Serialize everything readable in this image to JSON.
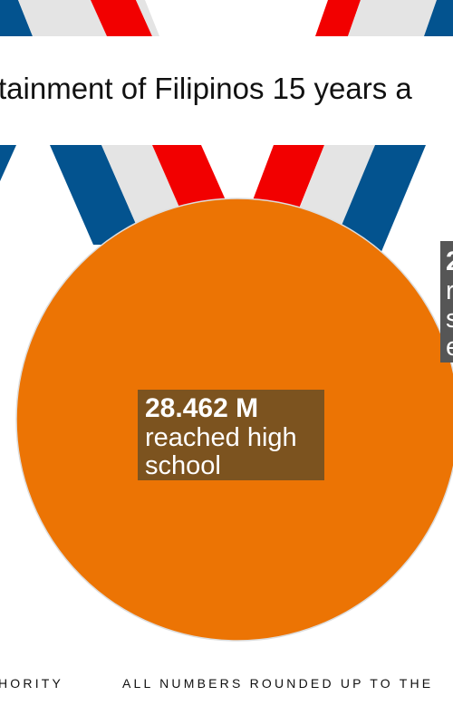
{
  "header": {
    "title": "tainment of Filipinos 15 years a"
  },
  "medal": {
    "value": "28.462 M",
    "label_lines": [
      "reached high",
      "school"
    ]
  },
  "side_box": {
    "value": "2",
    "label_lines": [
      "r",
      "s",
      "e"
    ]
  },
  "footer": {
    "left": "HORITY",
    "right": "ALL NUMBERS ROUNDED UP TO THE"
  }
}
